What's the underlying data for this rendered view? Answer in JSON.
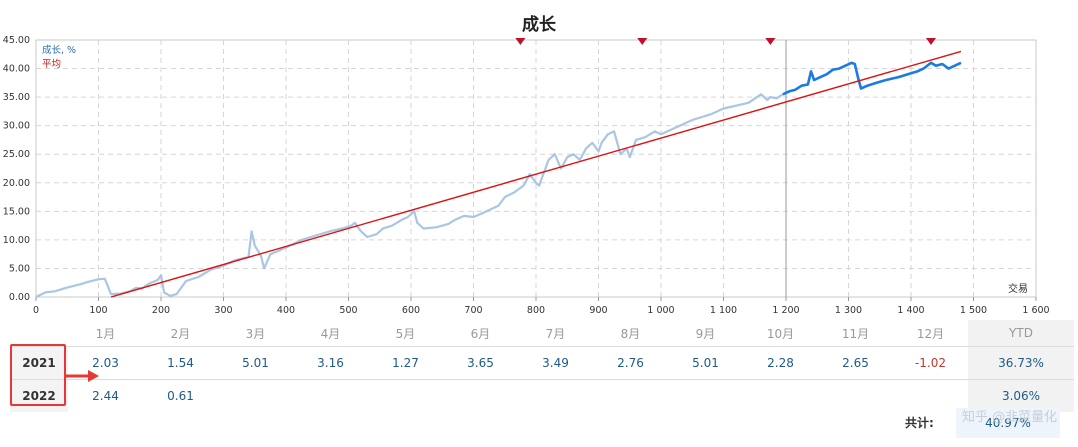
{
  "chart_data": {
    "type": "line",
    "title": "成长",
    "xlabel": "交易",
    "xlim": [
      0,
      1600
    ],
    "ylim": [
      0,
      45
    ],
    "xticks": [
      0,
      100,
      200,
      300,
      400,
      500,
      600,
      700,
      800,
      900,
      1000,
      1100,
      1200,
      1300,
      1400,
      1500,
      1600
    ],
    "xtick_labels": [
      "0",
      "100",
      "200",
      "300",
      "400",
      "500",
      "600",
      "700",
      "800",
      "900",
      "1 000",
      "1 100",
      "1 200",
      "1 300",
      "1 400",
      "1 500",
      "1 600"
    ],
    "yticks": [
      0,
      5,
      10,
      15,
      20,
      25,
      30,
      35,
      40,
      45
    ],
    "ytick_labels": [
      "0.00",
      "5.00",
      "10.00",
      "15.00",
      "20.00",
      "25.00",
      "30.00",
      "35.00",
      "40.00",
      "45.00"
    ],
    "grid": true,
    "legend_position": "top-left",
    "divider_x": 1200,
    "markers_x": [
      775,
      970,
      1175,
      1432
    ],
    "series": [
      {
        "name": "成长, %",
        "color": "#a9c6e3",
        "x": [
          0,
          15,
          30,
          45,
          55,
          70,
          85,
          100,
          110,
          120,
          135,
          150,
          160,
          170,
          180,
          195,
          200,
          205,
          215,
          225,
          240,
          260,
          280,
          300,
          320,
          340,
          345,
          350,
          360,
          365,
          375,
          390,
          410,
          425,
          440,
          455,
          470,
          490,
          505,
          510,
          520,
          530,
          545,
          555,
          570,
          585,
          595,
          605,
          610,
          620,
          640,
          660,
          670,
          685,
          700,
          715,
          740,
          750,
          765,
          780,
          790,
          800,
          805,
          815,
          820,
          830,
          840,
          850,
          860,
          870,
          880,
          890,
          900,
          905,
          915,
          925,
          935,
          945,
          950,
          960,
          975,
          990,
          1000,
          1010,
          1030,
          1050,
          1080,
          1100,
          1120,
          1140,
          1160,
          1170,
          1175,
          1185,
          1195
        ],
        "y": [
          0,
          0.8,
          1,
          1.5,
          1.8,
          2.2,
          2.7,
          3.1,
          3.2,
          0.5,
          0.6,
          1,
          1.6,
          1.5,
          2.3,
          3,
          3.8,
          0.8,
          0.2,
          0.5,
          2.8,
          3.5,
          4.8,
          5.5,
          6.5,
          7,
          11.5,
          9,
          7.2,
          5,
          7.5,
          8.2,
          9.2,
          10,
          10.5,
          11,
          11.5,
          12,
          12.5,
          13,
          11.5,
          10.5,
          11,
          12,
          12.5,
          13.5,
          14,
          15,
          13,
          12,
          12.2,
          12.8,
          13.5,
          14.2,
          14,
          14.7,
          16,
          17.5,
          18.3,
          19.5,
          21.5,
          20,
          19.5,
          22.5,
          24,
          25,
          22.5,
          24.5,
          25,
          24,
          26,
          27,
          25.5,
          27,
          28.5,
          29,
          25,
          26,
          24.5,
          27.5,
          28,
          29,
          28.5,
          29,
          30,
          31,
          32,
          33,
          33.5,
          34,
          35.5,
          34.5,
          35,
          34.8,
          35.5
        ]
      },
      {
        "name": "",
        "color": "#1a7be0",
        "x": [
          1195,
          1205,
          1215,
          1225,
          1235,
          1240,
          1245,
          1255,
          1265,
          1275,
          1285,
          1295,
          1305,
          1310,
          1315,
          1320,
          1330,
          1345,
          1360,
          1380,
          1395,
          1410,
          1420,
          1432,
          1440,
          1450,
          1460,
          1470,
          1480
        ],
        "y": [
          35.5,
          36,
          36.3,
          37,
          37.2,
          39.5,
          38,
          38.5,
          39,
          39.8,
          40,
          40.5,
          41,
          40.8,
          38.5,
          36.5,
          37,
          37.5,
          38,
          38.5,
          39,
          39.5,
          40,
          41,
          40.5,
          40.8,
          40,
          40.5,
          41
        ]
      },
      {
        "name": "平均",
        "color": "#dd1111",
        "x": [
          120,
          1480
        ],
        "y": [
          0,
          43
        ]
      }
    ]
  },
  "table": {
    "months": [
      "1月",
      "2月",
      "3月",
      "4月",
      "5月",
      "6月",
      "7月",
      "8月",
      "9月",
      "10月",
      "11月",
      "12月"
    ],
    "ytd_label": "YTD",
    "rows": [
      {
        "year": "2021",
        "values": [
          "2.03",
          "1.54",
          "5.01",
          "3.16",
          "1.27",
          "3.65",
          "3.49",
          "2.76",
          "5.01",
          "2.28",
          "2.65",
          "-1.02"
        ],
        "ytd": "36.73%"
      },
      {
        "year": "2022",
        "values": [
          "2.44",
          "0.61",
          "",
          "",
          "",
          "",
          "",
          "",
          "",
          "",
          "",
          ""
        ],
        "ytd": "3.06%"
      }
    ],
    "total_label": "共计:",
    "total_value": "40.97%"
  },
  "watermark": "知乎 @韭菜量化",
  "colors": {
    "highlight": "#e53935"
  }
}
